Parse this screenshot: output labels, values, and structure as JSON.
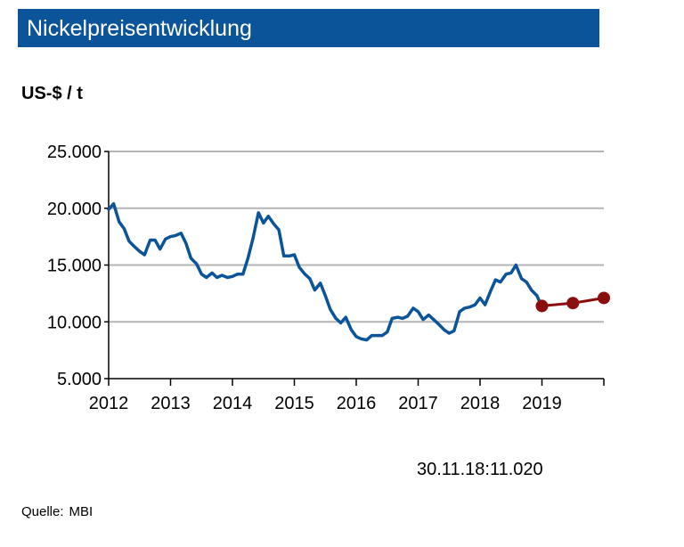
{
  "title": "Nickelpreisentwicklung",
  "unit_label": "US-$ / t",
  "annotation": {
    "date": "30.11.18:",
    "value": "11.020"
  },
  "source": {
    "label": "Quelle:",
    "value": "MBI"
  },
  "colors": {
    "title_bg": "#0b5499",
    "history": "#0b5499",
    "forecast": "#8b0d0d",
    "grid": "#b5b5b5"
  },
  "chart_data": {
    "type": "line",
    "xlim": [
      2012,
      2020
    ],
    "ylim": [
      5000,
      25000
    ],
    "y_ticks": [
      5000,
      10000,
      15000,
      20000,
      25000
    ],
    "y_tick_labels": [
      "5.000",
      "10.000",
      "15.000",
      "20.000",
      "25.000"
    ],
    "x_ticks": [
      2012,
      2013,
      2014,
      2015,
      2016,
      2017,
      2018,
      2019
    ],
    "x_tick_labels": [
      "2012",
      "2013",
      "2014",
      "2015",
      "2016",
      "2017",
      "2018",
      "2019"
    ],
    "grid": "horizontal",
    "series": [
      {
        "style": "line",
        "points": [
          [
            2012.0,
            19900
          ],
          [
            2012.08,
            20400
          ],
          [
            2012.17,
            18800
          ],
          [
            2012.25,
            18200
          ],
          [
            2012.33,
            17100
          ],
          [
            2012.42,
            16600
          ],
          [
            2012.5,
            16200
          ],
          [
            2012.58,
            15900
          ],
          [
            2012.67,
            17200
          ],
          [
            2012.75,
            17200
          ],
          [
            2012.83,
            16400
          ],
          [
            2012.92,
            17300
          ],
          [
            2013.0,
            17500
          ],
          [
            2013.08,
            17600
          ],
          [
            2013.17,
            17800
          ],
          [
            2013.25,
            16900
          ],
          [
            2013.33,
            15600
          ],
          [
            2013.42,
            15100
          ],
          [
            2013.5,
            14200
          ],
          [
            2013.58,
            13900
          ],
          [
            2013.67,
            14300
          ],
          [
            2013.75,
            13900
          ],
          [
            2013.83,
            14100
          ],
          [
            2013.92,
            13900
          ],
          [
            2014.0,
            14000
          ],
          [
            2014.08,
            14200
          ],
          [
            2014.17,
            14200
          ],
          [
            2014.25,
            15600
          ],
          [
            2014.33,
            17300
          ],
          [
            2014.42,
            19600
          ],
          [
            2014.5,
            18700
          ],
          [
            2014.58,
            19300
          ],
          [
            2014.67,
            18600
          ],
          [
            2014.75,
            18100
          ],
          [
            2014.83,
            15800
          ],
          [
            2014.92,
            15800
          ],
          [
            2015.0,
            15900
          ],
          [
            2015.08,
            14800
          ],
          [
            2015.17,
            14200
          ],
          [
            2015.25,
            13800
          ],
          [
            2015.33,
            12800
          ],
          [
            2015.42,
            13400
          ],
          [
            2015.5,
            12300
          ],
          [
            2015.58,
            11100
          ],
          [
            2015.67,
            10300
          ],
          [
            2015.75,
            9900
          ],
          [
            2015.83,
            10400
          ],
          [
            2015.92,
            9300
          ],
          [
            2016.0,
            8700
          ],
          [
            2016.08,
            8500
          ],
          [
            2016.17,
            8400
          ],
          [
            2016.25,
            8800
          ],
          [
            2016.33,
            8800
          ],
          [
            2016.42,
            8800
          ],
          [
            2016.5,
            9100
          ],
          [
            2016.58,
            10300
          ],
          [
            2016.67,
            10400
          ],
          [
            2016.75,
            10300
          ],
          [
            2016.83,
            10500
          ],
          [
            2016.92,
            11200
          ],
          [
            2017.0,
            10900
          ],
          [
            2017.08,
            10200
          ],
          [
            2017.17,
            10600
          ],
          [
            2017.25,
            10200
          ],
          [
            2017.33,
            9800
          ],
          [
            2017.42,
            9300
          ],
          [
            2017.5,
            9000
          ],
          [
            2017.58,
            9200
          ],
          [
            2017.67,
            10900
          ],
          [
            2017.75,
            11200
          ],
          [
            2017.83,
            11300
          ],
          [
            2017.92,
            11500
          ],
          [
            2018.0,
            12100
          ],
          [
            2018.08,
            11500
          ],
          [
            2018.17,
            12700
          ],
          [
            2018.25,
            13700
          ],
          [
            2018.33,
            13500
          ],
          [
            2018.42,
            14200
          ],
          [
            2018.5,
            14300
          ],
          [
            2018.58,
            15000
          ],
          [
            2018.67,
            13800
          ],
          [
            2018.75,
            13500
          ],
          [
            2018.83,
            12800
          ],
          [
            2018.92,
            12300
          ],
          [
            2019.0,
            11300
          ]
        ]
      },
      {
        "style": "line-markers",
        "points": [
          [
            2019.0,
            11400
          ],
          [
            2019.5,
            11650
          ],
          [
            2020.0,
            12100
          ]
        ]
      }
    ]
  }
}
